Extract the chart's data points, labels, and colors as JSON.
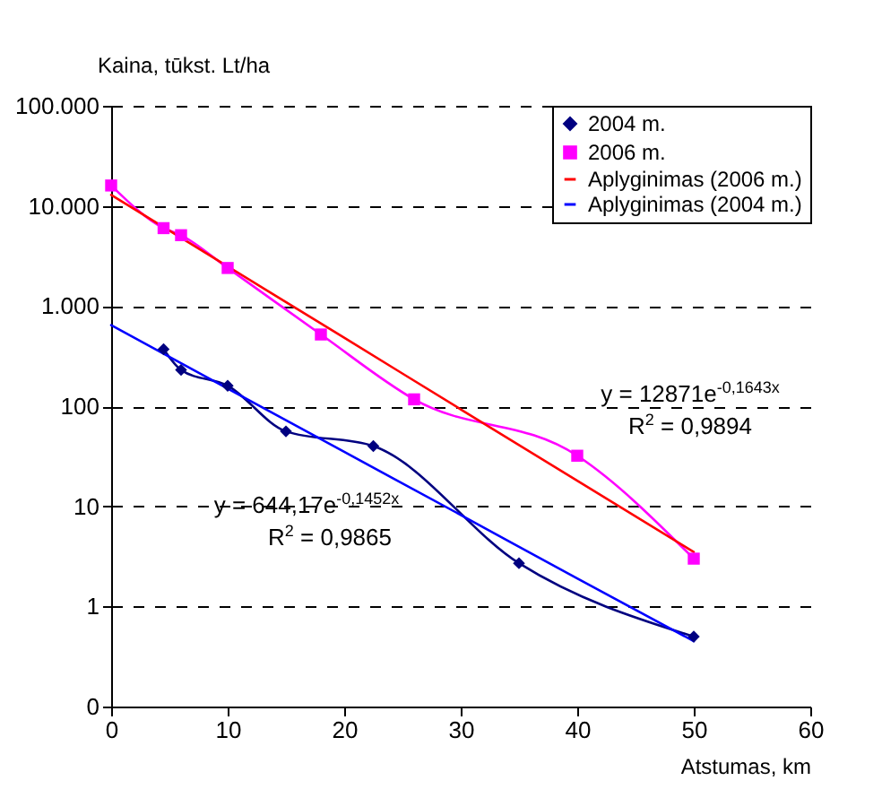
{
  "chart_data": {
    "type": "line",
    "xlabel": "Atstumas, km",
    "ylabel": "Kaina, tūkst. Lt/ha",
    "log": "y",
    "grid": "y",
    "legend": "top right",
    "xlim": [
      0,
      60
    ],
    "xticks": [
      0,
      10,
      20,
      30,
      40,
      50,
      60
    ],
    "ylim": [
      0.1,
      100000
    ],
    "yticks": [
      {
        "value": 0.1,
        "label": "0"
      },
      1,
      10,
      100,
      {
        "value": 1000,
        "label": "1.000"
      },
      {
        "value": 10000,
        "label": "10.000"
      },
      {
        "value": 100000,
        "label": "100.000"
      }
    ],
    "series": [
      {
        "name": "2004 m.",
        "color": "#000080",
        "marker": "diamond",
        "x": [
          4.5,
          6,
          10,
          15,
          22.5,
          35,
          50
        ],
        "values": [
          370,
          230,
          160,
          56,
          40,
          2.7,
          0.5
        ]
      },
      {
        "name": "2006 m.",
        "color": "#ff00ff",
        "marker": "square",
        "x": [
          0,
          4.5,
          6,
          10,
          18,
          26,
          40,
          50
        ],
        "values": [
          16000,
          6000,
          5100,
          2400,
          520,
          117,
          32,
          3
        ]
      },
      {
        "name": "Aplyginimas (2006 m.)",
        "color": "#ff0000",
        "marker": "none",
        "x": [
          0,
          10,
          20,
          30,
          40,
          50
        ],
        "values": [
          12871,
          2491,
          482,
          93,
          18,
          3.5
        ]
      },
      {
        "name": "Aplyginimas (2004 m.)",
        "color": "#0000ff",
        "marker": "none",
        "x": [
          0,
          10,
          20,
          30,
          40,
          50
        ],
        "values": [
          644,
          150,
          35,
          8.2,
          1.9,
          0.45
        ]
      }
    ],
    "annotations": [
      "y = 12871e$^{-0,1643x}$",
      "R$^{2}$ = 0,9894",
      "y = 644,17e$^{-0,1452x}$",
      "R$^{2}$ = 0,9865"
    ]
  }
}
